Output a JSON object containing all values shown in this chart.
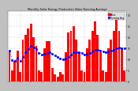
{
  "title": "Monthly Solar Energy Production Value Running Average",
  "bar_color": "#ff0000",
  "avg_color": "#0000ff",
  "background_color": "#c0c0c0",
  "plot_bg_color": "#ffffff",
  "grid_color": "#aaaaaa",
  "values": [
    14,
    5,
    9,
    14,
    4,
    19,
    21,
    24,
    26,
    20,
    16,
    5,
    4,
    15,
    18,
    18,
    6,
    3,
    2,
    4,
    3,
    13,
    22,
    23,
    25,
    19,
    13,
    5,
    4,
    15,
    19,
    23,
    27,
    21,
    13,
    5,
    4,
    15,
    19,
    23,
    29,
    23,
    15,
    5
  ],
  "running_avg": [
    14,
    9.5,
    9.3,
    10.5,
    9.2,
    11.0,
    13.0,
    14.6,
    15.9,
    15.2,
    14.7,
    12.9,
    12.2,
    12.3,
    12.7,
    13.0,
    12.3,
    11.6,
    10.8,
    10.4,
    9.9,
    10.1,
    11.1,
    12.0,
    13.0,
    13.2,
    13.1,
    12.6,
    12.1,
    12.4,
    12.8,
    13.4,
    14.1,
    14.2,
    14.0,
    13.6,
    13.2,
    13.5,
    13.8,
    14.2,
    14.9,
    15.2,
    15.1,
    14.8
  ],
  "ylim": [
    0,
    32
  ],
  "yticks": [
    0,
    5,
    10,
    15,
    20,
    25,
    30
  ],
  "n_bars": 44
}
